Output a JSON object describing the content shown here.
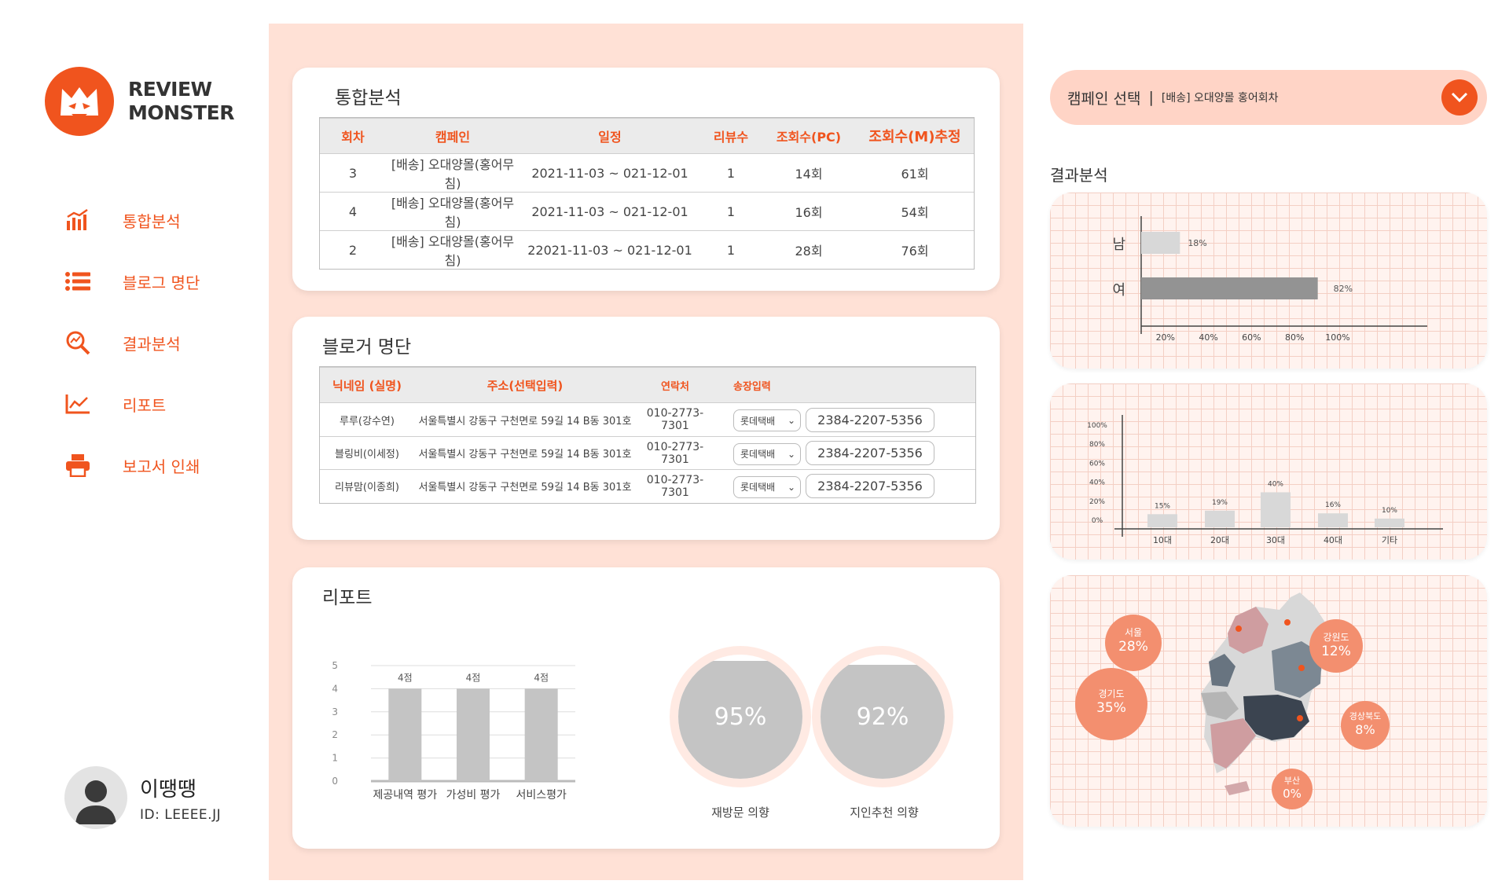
{
  "brand": {
    "line1": "REVIEW",
    "line2": "MONSTER"
  },
  "colors": {
    "accent": "#f0541e",
    "panel_bg": "#ffe1d6",
    "bar_gray": "#c4c4c4",
    "dark_bar": "#939393"
  },
  "nav": [
    {
      "label": "통합분석",
      "icon": "bar-chart-icon"
    },
    {
      "label": "블로그 명단",
      "icon": "list-icon"
    },
    {
      "label": "결과분석",
      "icon": "search-analysis-icon"
    },
    {
      "label": "리포트",
      "icon": "line-chart-icon"
    },
    {
      "label": "보고서 인쇄",
      "icon": "printer-icon"
    }
  ],
  "profile": {
    "name": "이땡땡",
    "id": "ID: LEEEE.JJ"
  },
  "integrated": {
    "title": "통합분석",
    "headers": [
      "회차",
      "캠페인",
      "일정",
      "리뷰수",
      "조회수(PC)",
      "조회수(M)추정"
    ],
    "rows": [
      [
        "3",
        "[배송] 오대양몰(홍어무침)",
        "2021-11-03 ~ 021-12-01",
        "1",
        "14회",
        "61회"
      ],
      [
        "4",
        "[배송] 오대양몰(홍어무침)",
        "2021-11-03 ~ 021-12-01",
        "1",
        "16회",
        "54회"
      ],
      [
        "2",
        "[배송] 오대양몰(홍어무침)",
        "22021-11-03 ~ 021-12-01",
        "1",
        "28회",
        "76회"
      ]
    ]
  },
  "bloggers": {
    "title": "블로거 명단",
    "headers": [
      "닉네임 (실명)",
      "주소(선택입력)",
      "연락처",
      "송장입력"
    ],
    "rows": [
      {
        "nick": "루루(강수연)",
        "address": "서울특별시 강동구 구천면로 59길 14 B동 301호",
        "phone": "010-2773-7301",
        "carrier": "롯데택배",
        "tracking": "2384-2207-5356"
      },
      {
        "nick": "블링비(이세정)",
        "address": "서울특별시 강동구 구천면로 59길 14 B동 301호",
        "phone": "010-2773-7301",
        "carrier": "롯데택배",
        "tracking": "2384-2207-5356"
      },
      {
        "nick": "리뷰맘(이종희)",
        "address": "서울특별시 강동구 구천면로 59길 14 B동 301호",
        "phone": "010-2773-7301",
        "carrier": "롯데택배",
        "tracking": "2384-2207-5356"
      }
    ]
  },
  "report": {
    "title": "리포트",
    "rings": [
      {
        "value": "95%",
        "label": "재방문 의향",
        "fill": 0.95
      },
      {
        "value": "92%",
        "label": "지인추천 의향",
        "fill": 0.92
      }
    ]
  },
  "campaign": {
    "label": "캠페인 선택",
    "separator": "|",
    "value": "[배송] 오대양몰 홍어회차"
  },
  "result": {
    "title": "결과분석"
  },
  "regions": [
    {
      "name": "서울",
      "value": "28%"
    },
    {
      "name": "강원도",
      "value": "12%"
    },
    {
      "name": "경기도",
      "value": "35%"
    },
    {
      "name": "경상북도",
      "value": "8%"
    },
    {
      "name": "부산",
      "value": "0%"
    }
  ],
  "chart_data": [
    {
      "type": "bar",
      "orientation": "vertical",
      "categories": [
        "제공내역 평가",
        "가성비 평가",
        "서비스평가"
      ],
      "values": [
        4,
        4,
        4
      ],
      "data_labels": [
        "4점",
        "4점",
        "4점"
      ],
      "yticks": [
        "0",
        "1",
        "2",
        "3",
        "4",
        "5"
      ],
      "ylim": [
        0,
        5
      ],
      "grid": true
    },
    {
      "type": "bar",
      "orientation": "horizontal",
      "categories": [
        "남",
        "여"
      ],
      "values": [
        18,
        82
      ],
      "data_labels": [
        "18%",
        "82%"
      ],
      "xticks": [
        "20%",
        "40%",
        "60%",
        "80%",
        "100%"
      ],
      "xlim": [
        0,
        100
      ]
    },
    {
      "type": "bar",
      "orientation": "vertical",
      "categories": [
        "10대",
        "20대",
        "30대",
        "40대",
        "기타"
      ],
      "values": [
        15,
        19,
        40,
        16,
        10
      ],
      "data_labels": [
        "15%",
        "19%",
        "40%",
        "16%",
        "10%"
      ],
      "yticks": [
        "0%",
        "20%",
        "40%",
        "60%",
        "80%",
        "100%"
      ],
      "ylim": [
        0,
        100
      ]
    }
  ]
}
